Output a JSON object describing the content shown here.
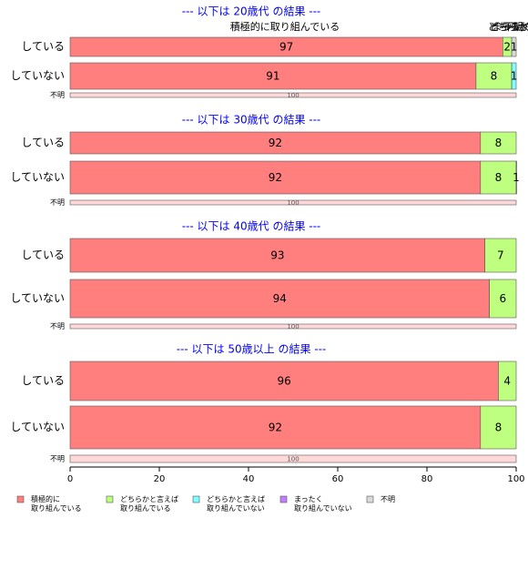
{
  "chart_data": {
    "type": "bar",
    "orientation": "horizontal",
    "stacked": true,
    "xlim": [
      0,
      100
    ],
    "x_ticks": [
      0,
      20,
      40,
      60,
      80,
      100
    ],
    "grid": false,
    "legend_position": "bottom",
    "category_labels": [
      "積極的に取り組んでいる",
      "どちらかと言えば取り組んでいる",
      "どちらかと言えば取り組んでいない",
      "まったく取り組んでいない",
      "不明"
    ],
    "category_colors": [
      "#ff7f7f",
      "#bfff7f",
      "#7fffff",
      "#bf7fff",
      "#d9d9d9"
    ],
    "panels": [
      {
        "title": "--- 以下は 20歳代 の結果 ---",
        "annotation": "積極的に取り組んでいる",
        "top_labels": [
          "どちらか",
          "どちらか",
          "まったく",
          "不明"
        ],
        "rows": [
          {
            "label": "している",
            "values": [
              97,
              2,
              0,
              0,
              1
            ]
          },
          {
            "label": "していない",
            "values": [
              91,
              8,
              1,
              0,
              0
            ]
          },
          {
            "label": "不明",
            "values": [
              0,
              0,
              0,
              0,
              100
            ]
          }
        ]
      },
      {
        "title": "--- 以下は 30歳代 の結果 ---",
        "rows": [
          {
            "label": "している",
            "values": [
              92,
              8,
              0,
              0,
              0
            ]
          },
          {
            "label": "していない",
            "values": [
              92,
              8,
              1,
              0,
              0
            ]
          },
          {
            "label": "不明",
            "values": [
              0,
              0,
              0,
              0,
              100
            ]
          }
        ]
      },
      {
        "title": "--- 以下は 40歳代 の結果 ---",
        "rows": [
          {
            "label": "している",
            "values": [
              93,
              7,
              0,
              0,
              0
            ]
          },
          {
            "label": "していない",
            "values": [
              94,
              6,
              0,
              0,
              0
            ]
          },
          {
            "label": "不明",
            "values": [
              0,
              0,
              0,
              0,
              100
            ]
          }
        ]
      },
      {
        "title": "--- 以下は 50歳以上 の結果 ---",
        "rows": [
          {
            "label": "している",
            "values": [
              96,
              4,
              0,
              0,
              0
            ]
          },
          {
            "label": "していない",
            "values": [
              92,
              8,
              0,
              0,
              0
            ]
          },
          {
            "label": "不明",
            "values": [
              0,
              0,
              0,
              0,
              100
            ]
          }
        ]
      }
    ],
    "legend": [
      {
        "lines": [
          "積極的に",
          "取り組んでいる"
        ],
        "color": "#ff7f7f"
      },
      {
        "lines": [
          "どちらかと言えば",
          "取り組んでいる"
        ],
        "color": "#bfff7f"
      },
      {
        "lines": [
          "どちらかと言えば",
          "取り組んでいない"
        ],
        "color": "#7fffff"
      },
      {
        "lines": [
          "まったく",
          "取り組んでいない"
        ],
        "color": "#bf7fff"
      },
      {
        "lines": [
          "不明"
        ],
        "color": "#d9d9d9"
      }
    ],
    "title_color": "#0000ff"
  }
}
